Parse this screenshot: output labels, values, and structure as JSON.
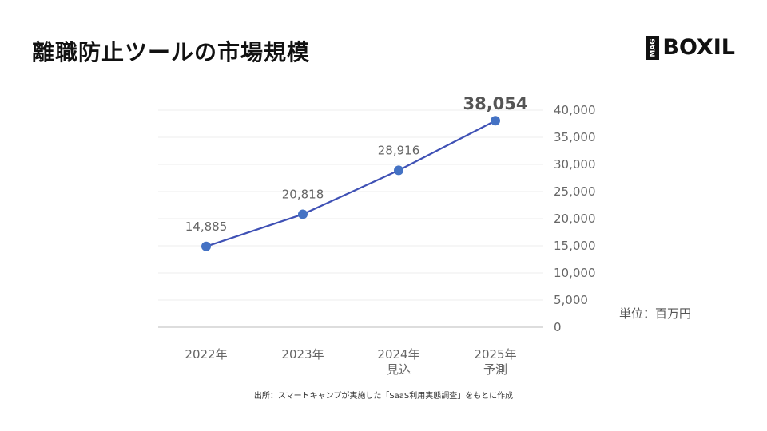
{
  "header": {
    "title": "離職防止ツールの市場規模"
  },
  "logo": {
    "mag": "MAG",
    "word": "BOXIL"
  },
  "unit_label": "単位：百万円",
  "source_note": "出所：スマートキャンプが実施した「SaaS利用実態調査」をもとに作成",
  "colors": {
    "line": "#3F51B5",
    "marker": "#4472C4",
    "grid": "#eeeeee",
    "axis": "#bbbbbb",
    "label": "#666666"
  },
  "chart_data": {
    "type": "line",
    "title": "離職防止ツールの市場規模",
    "categories": [
      "2022年",
      "2023年",
      "2024年\n見込",
      "2025年\n予測"
    ],
    "series": [
      {
        "values": [
          14885,
          20818,
          28916,
          38054
        ]
      }
    ],
    "data_labels": [
      "14,885",
      "20,818",
      "28,916",
      "38,054"
    ],
    "highlight_last_label": true,
    "ylim": [
      0,
      40000
    ],
    "yticks": [
      "0",
      "5,000",
      "10,000",
      "15,000",
      "20,000",
      "25,000",
      "30,000",
      "35,000",
      "40,000"
    ],
    "y_axis_side": "right",
    "grid": true,
    "legend": false
  }
}
